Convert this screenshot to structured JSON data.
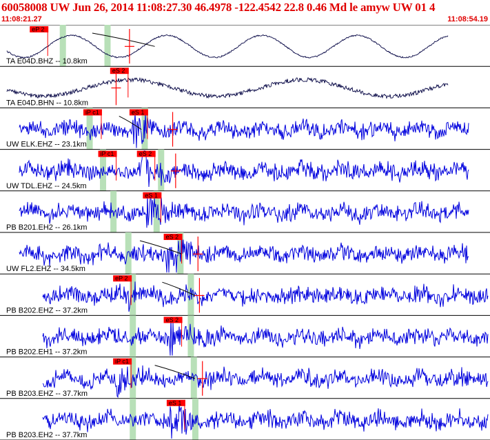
{
  "header": {
    "title": "60058008 UW Jun 26, 2014 11:08:27.30    46.4978 -122.4542 22.8 0.46 Md le amyw UW 01    4",
    "start_time": "11:08:21.27",
    "end_time": "11:08:54.19"
  },
  "colors": {
    "header_text": "#e00000",
    "trace_selected": "#000040",
    "trace": "#0000dd",
    "pick_box": "#ff0000",
    "theoretical_band": "#b8e0b8",
    "divider": "#000000"
  },
  "traces": [
    {
      "label": "TA E04D.BHZ -- 10.8km",
      "color": "dark",
      "picks": [
        {
          "text": "eP 2",
          "sec": 2.0
        }
      ],
      "bands": [
        4.2,
        7.2
      ],
      "markers": [
        8.7
      ],
      "curve": {
        "from": 6.2,
        "to": 10.4
      }
    },
    {
      "label": "TA E04D.BHN -- 10.8km",
      "color": "dark",
      "picks": [
        {
          "text": "eS 2",
          "sec": 7.4
        }
      ],
      "bands": [],
      "markers": [
        7.8
      ],
      "curve": null
    },
    {
      "label": "UW ELK.EHZ -- 23.1km",
      "color": "blue",
      "picks": [
        {
          "text": "iP c1",
          "sec": 5.6
        },
        {
          "text": "eS 1",
          "sec": 8.7
        }
      ],
      "bands": [
        6.0,
        9.7
      ],
      "markers": [
        11.6
      ],
      "curve": {
        "from": 8.0,
        "to": 9.5
      }
    },
    {
      "label": "UW TDL.EHZ -- 24.5km",
      "color": "blue",
      "picks": [
        {
          "text": "iP c1",
          "sec": 6.6
        },
        {
          "text": "eS 2",
          "sec": 9.2
        }
      ],
      "bands": [
        6.9,
        10.8
      ],
      "markers": [
        11.8
      ],
      "curve": null
    },
    {
      "label": "PB B201.EH2 -- 26.1km",
      "color": "blue",
      "picks": [
        {
          "text": "eS 1",
          "sec": 9.6
        }
      ],
      "bands": [
        7.6,
        10.5
      ],
      "markers": [],
      "curve": null
    },
    {
      "label": "UW FL2.EHZ -- 34.5km",
      "color": "blue",
      "picks": [
        {
          "text": "eS 2",
          "sec": 11.0
        }
      ],
      "bands": [
        8.6,
        12.1
      ],
      "markers": [
        13.3
      ],
      "curve": {
        "from": 9.4,
        "to": 12.2
      }
    },
    {
      "label": "PB B202.EHZ -- 37.2km",
      "color": "blue",
      "picks": [
        {
          "text": "eP 2",
          "sec": 7.6
        }
      ],
      "bands": [
        8.9,
        12.8
      ],
      "markers": [
        13.4
      ],
      "curve": {
        "from": 10.9,
        "to": 13.1
      }
    },
    {
      "label": "PB B202.EH1 -- 37.2km",
      "color": "blue",
      "picks": [
        {
          "text": "eS 2",
          "sec": 11.0
        }
      ],
      "bands": [
        8.9,
        12.8
      ],
      "markers": [],
      "curve": null
    },
    {
      "label": "PB B203.EHZ -- 37.7km",
      "color": "blue",
      "picks": [
        {
          "text": "iP c1",
          "sec": 7.6
        }
      ],
      "bands": [
        8.9,
        13.0
      ],
      "markers": [
        13.6
      ],
      "curve": {
        "from": 10.4,
        "to": 13.1
      }
    },
    {
      "label": "PB B203.EH2 -- 37.7km",
      "color": "blue",
      "picks": [
        {
          "text": "eS 1",
          "sec": 11.2
        }
      ],
      "bands": [
        8.9,
        13.1
      ],
      "markers": [],
      "curve": null
    }
  ]
}
